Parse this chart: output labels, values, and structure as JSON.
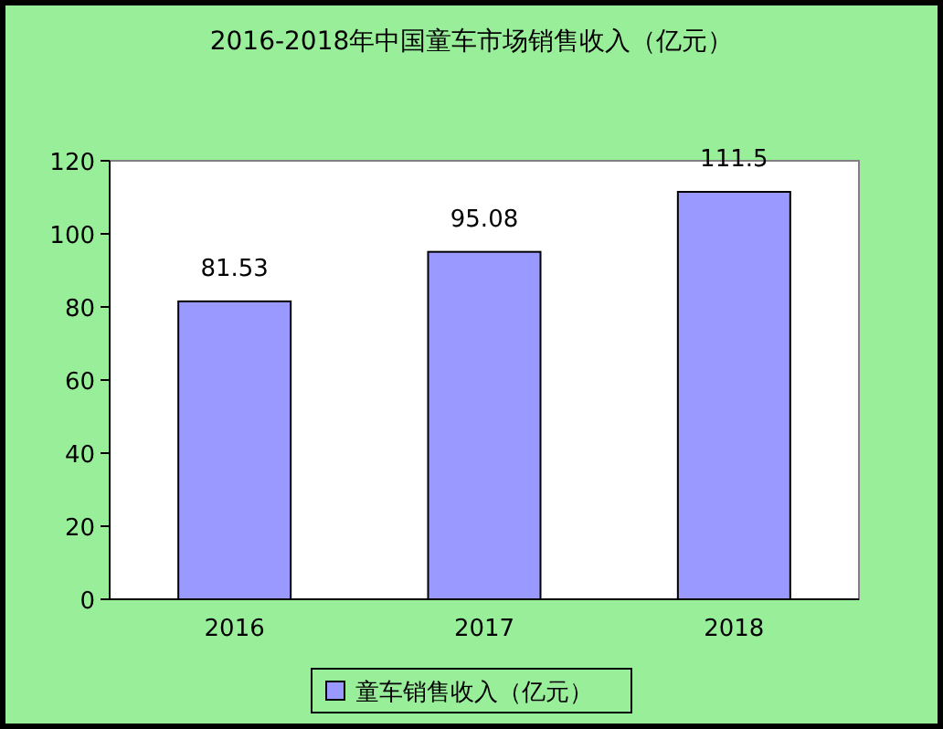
{
  "chart_data": {
    "type": "bar",
    "title": "2016-2018年中国童车市场销售收入（亿元）",
    "categories": [
      "2016",
      "2017",
      "2018"
    ],
    "series": [
      {
        "name": "童车销售收入（亿元）",
        "color": "#9999ff",
        "values": [
          81.53,
          95.08,
          111.5
        ]
      }
    ],
    "ylim": [
      0,
      120
    ],
    "yticks": [
      0,
      20,
      40,
      60,
      80,
      100,
      120
    ],
    "data_labels": true,
    "legend": "bottom",
    "grid": false
  }
}
